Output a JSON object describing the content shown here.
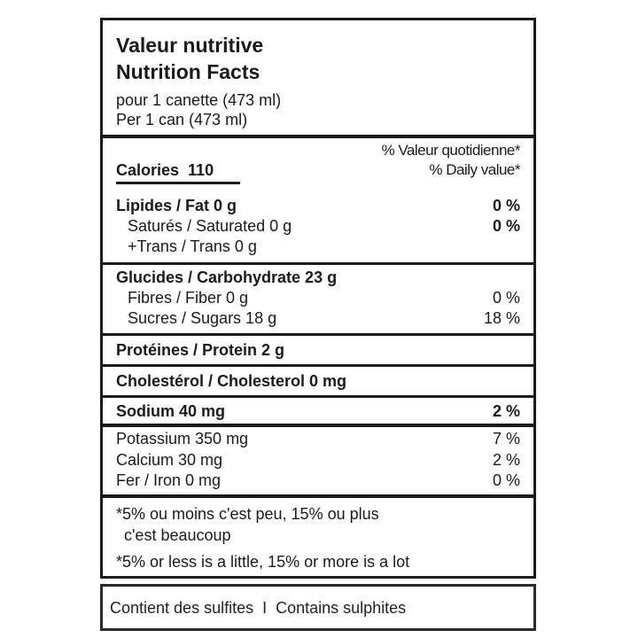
{
  "header": {
    "title_fr": "Valeur nutritive",
    "title_en": "Nutrition Facts",
    "serving_fr": "pour 1 canette (473 ml)",
    "serving_en": "Per 1 can (473 ml)"
  },
  "dv_header": {
    "fr": "% Valeur quotidienne*",
    "en": "% Daily value*"
  },
  "calories": "Calories  110",
  "nutrients": {
    "fat": {
      "label": "Lipides / Fat 0 g",
      "dv": "0 %"
    },
    "saturated": {
      "label": "Saturés / Saturated 0 g",
      "dv": "0 %"
    },
    "trans": {
      "label": "+Trans / Trans 0 g"
    },
    "carbohydrate": {
      "label": "Glucides / Carbohydrate 23 g"
    },
    "fiber": {
      "label": "Fibres / Fiber 0 g",
      "dv": "0 %"
    },
    "sugars": {
      "label": "Sucres / Sugars 18 g",
      "dv": "18 %"
    },
    "protein": {
      "label": "Protéines / Protein 2 g"
    },
    "cholesterol": {
      "label": "Cholestérol / Cholesterol 0 mg"
    },
    "sodium": {
      "label": "Sodium 40 mg",
      "dv": "2 %"
    },
    "potassium": {
      "label": "Potassium 350 mg",
      "dv": "7 %"
    },
    "calcium": {
      "label": "Calcium 30 mg",
      "dv": "2 %"
    },
    "iron": {
      "label": "Fer / Iron 0 mg",
      "dv": "0 %"
    }
  },
  "footnote": {
    "fr_line1": "*5% ou moins c'est peu, 15% ou plus",
    "fr_line2": "c'est beaucoup",
    "en": "*5% or less is a little, 15% or more is a lot"
  },
  "allergen": "Contient des sulfites  I  Contains sulphites"
}
